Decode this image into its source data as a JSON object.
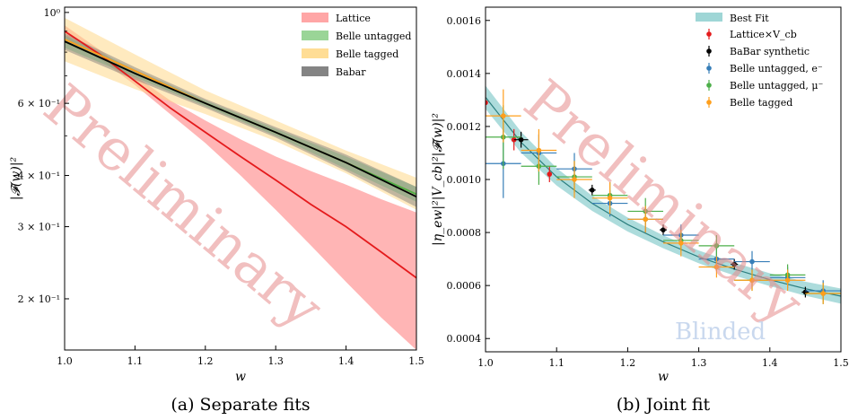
{
  "chart_data": [
    {
      "type": "line",
      "panel": "a",
      "caption": "(a)  Separate fits",
      "xlabel": "w",
      "ylabel": "|𝓕(w)|²",
      "xlim": [
        1.0,
        1.5
      ],
      "ylim": [
        0.15,
        1.03
      ],
      "yscale": "log",
      "xticks": [
        1.0,
        1.1,
        1.2,
        1.3,
        1.4,
        1.5
      ],
      "xtick_labels": [
        "1.0",
        "1.1",
        "1.2",
        "1.3",
        "1.4",
        "1.5"
      ],
      "yticks": [
        1.0,
        0.6,
        0.4,
        0.3,
        0.2
      ],
      "ytick_labels": [
        "10⁰",
        "6 × 10⁻¹",
        "4 × 10⁻¹",
        "3 × 10⁻¹",
        "2 × 10⁻¹"
      ],
      "grid": false,
      "legend_position": "top-right",
      "watermark": "Preliminary",
      "series": [
        {
          "name": "Lattice",
          "color": "#e41a1c",
          "band_color": "#ff9c9c",
          "x": [
            1.0,
            1.05,
            1.1,
            1.15,
            1.2,
            1.25,
            1.3,
            1.35,
            1.4,
            1.45,
            1.5
          ],
          "central": [
            0.9,
            0.79,
            0.68,
            0.585,
            0.51,
            0.445,
            0.39,
            0.34,
            0.3,
            0.26,
            0.225
          ],
          "lower": [
            0.87,
            0.77,
            0.665,
            0.565,
            0.48,
            0.4,
            0.33,
            0.27,
            0.22,
            0.18,
            0.15
          ],
          "upper": [
            0.93,
            0.81,
            0.7,
            0.61,
            0.545,
            0.49,
            0.445,
            0.41,
            0.38,
            0.35,
            0.325
          ]
        },
        {
          "name": "Belle untagged",
          "color": "#4daf4a",
          "band_color": "#8fd08c",
          "x": [
            1.0,
            1.1,
            1.2,
            1.3,
            1.4,
            1.5
          ],
          "central": [
            0.85,
            0.71,
            0.6,
            0.51,
            0.43,
            0.36
          ],
          "lower": [
            0.82,
            0.695,
            0.59,
            0.5,
            0.415,
            0.345
          ],
          "upper": [
            0.88,
            0.725,
            0.61,
            0.52,
            0.445,
            0.375
          ]
        },
        {
          "name": "Belle tagged",
          "color": "#ff9f1c",
          "band_color": "#ffd98a",
          "x": [
            1.0,
            1.1,
            1.2,
            1.3,
            1.4,
            1.5
          ],
          "central": [
            0.86,
            0.72,
            0.6,
            0.51,
            0.43,
            0.36
          ],
          "lower": [
            0.76,
            0.65,
            0.565,
            0.485,
            0.405,
            0.33
          ],
          "upper": [
            0.97,
            0.79,
            0.645,
            0.545,
            0.46,
            0.395
          ]
        },
        {
          "name": "Babar",
          "color": "#000000",
          "band_color": "#777777",
          "x": [
            1.0,
            1.1,
            1.2,
            1.3,
            1.4,
            1.5
          ],
          "central": [
            0.85,
            0.71,
            0.6,
            0.51,
            0.43,
            0.355
          ],
          "lower": [
            0.81,
            0.685,
            0.585,
            0.495,
            0.41,
            0.335
          ],
          "upper": [
            0.89,
            0.735,
            0.615,
            0.525,
            0.45,
            0.375
          ]
        }
      ]
    },
    {
      "type": "scatter",
      "panel": "b",
      "caption": "(b)  Joint fit",
      "xlabel": "w",
      "ylabel": "|η_ew|²|V_cb|²|𝓕(w)|²",
      "xlim": [
        1.0,
        1.5
      ],
      "ylim": [
        0.00035,
        0.00165
      ],
      "xticks": [
        1.0,
        1.1,
        1.2,
        1.3,
        1.4,
        1.5
      ],
      "xtick_labels": [
        "1.0",
        "1.1",
        "1.2",
        "1.3",
        "1.4",
        "1.5"
      ],
      "yticks": [
        0.0004,
        0.0006,
        0.0008,
        0.001,
        0.0012,
        0.0014,
        0.0016
      ],
      "ytick_labels": [
        "0.0004",
        "0.0006",
        "0.0008",
        "0.0010",
        "0.0012",
        "0.0014",
        "0.0016"
      ],
      "grid": false,
      "legend_position": "top-right",
      "watermark": "Preliminary",
      "annotation": "Blinded",
      "fit": {
        "name": "Best Fit",
        "color": "#2c7f7f",
        "band_color": "#9fd6d6",
        "x": [
          1.0,
          1.05,
          1.1,
          1.15,
          1.2,
          1.25,
          1.3,
          1.35,
          1.4,
          1.45,
          1.5
        ],
        "central": [
          0.00131,
          0.00114,
          0.00101,
          0.00091,
          0.00083,
          0.000765,
          0.000708,
          0.000662,
          0.000622,
          0.000588,
          0.00056
        ],
        "half_width": [
          2e-05,
          1.8e-05,
          1.5e-05,
          1.3e-05,
          1.2e-05,
          1.1e-05,
          1.1e-05,
          1.1e-05,
          1.1e-05,
          1.2e-05,
          1.3e-05
        ]
      },
      "series": [
        {
          "name": "Lattice×V_cb",
          "color": "#e41a1c",
          "points": [
            {
              "x": 1.0,
              "y": 0.00129,
              "xerr": 0.0,
              "yerr": 5e-05
            },
            {
              "x": 1.04,
              "y": 0.00115,
              "xerr": 0.0,
              "yerr": 4e-05
            },
            {
              "x": 1.09,
              "y": 0.00102,
              "xerr": 0.0,
              "yerr": 3e-05
            }
          ]
        },
        {
          "name": "BaBar synthetic",
          "color": "#000000",
          "points": [
            {
              "x": 1.05,
              "y": 0.00115,
              "xerr": 0.01,
              "yerr": 3e-05
            },
            {
              "x": 1.15,
              "y": 0.00096,
              "xerr": 0.005,
              "yerr": 2e-05
            },
            {
              "x": 1.25,
              "y": 0.00081,
              "xerr": 0.005,
              "yerr": 2e-05
            },
            {
              "x": 1.35,
              "y": 0.00068,
              "xerr": 0.005,
              "yerr": 2e-05
            },
            {
              "x": 1.45,
              "y": 0.000575,
              "xerr": 0.005,
              "yerr": 2e-05
            }
          ]
        },
        {
          "name": "Belle untagged, e⁻",
          "color": "#377eb8",
          "points": [
            {
              "x": 1.025,
              "y": 0.00106,
              "xerr": 0.025,
              "yerr": 0.00013
            },
            {
              "x": 1.075,
              "y": 0.0011,
              "xerr": 0.025,
              "yerr": 7e-05
            },
            {
              "x": 1.125,
              "y": 0.00104,
              "xerr": 0.025,
              "yerr": 6e-05
            },
            {
              "x": 1.175,
              "y": 0.00091,
              "xerr": 0.025,
              "yerr": 5e-05
            },
            {
              "x": 1.225,
              "y": 0.00085,
              "xerr": 0.025,
              "yerr": 5e-05
            },
            {
              "x": 1.275,
              "y": 0.00079,
              "xerr": 0.025,
              "yerr": 4e-05
            },
            {
              "x": 1.325,
              "y": 0.0007,
              "xerr": 0.025,
              "yerr": 4e-05
            },
            {
              "x": 1.375,
              "y": 0.00069,
              "xerr": 0.025,
              "yerr": 4e-05
            },
            {
              "x": 1.425,
              "y": 0.00063,
              "xerr": 0.025,
              "yerr": 4e-05
            },
            {
              "x": 1.475,
              "y": 0.00058,
              "xerr": 0.025,
              "yerr": 4e-05
            }
          ]
        },
        {
          "name": "Belle untagged, μ⁻",
          "color": "#4daf4a",
          "points": [
            {
              "x": 1.025,
              "y": 0.00116,
              "xerr": 0.025,
              "yerr": 0.00012
            },
            {
              "x": 1.075,
              "y": 0.00105,
              "xerr": 0.025,
              "yerr": 7e-05
            },
            {
              "x": 1.125,
              "y": 0.00101,
              "xerr": 0.025,
              "yerr": 6e-05
            },
            {
              "x": 1.175,
              "y": 0.00094,
              "xerr": 0.025,
              "yerr": 5e-05
            },
            {
              "x": 1.225,
              "y": 0.00088,
              "xerr": 0.025,
              "yerr": 5e-05
            },
            {
              "x": 1.275,
              "y": 0.00077,
              "xerr": 0.025,
              "yerr": 4e-05
            },
            {
              "x": 1.325,
              "y": 0.00075,
              "xerr": 0.025,
              "yerr": 4e-05
            },
            {
              "x": 1.375,
              "y": 0.00062,
              "xerr": 0.025,
              "yerr": 4e-05
            },
            {
              "x": 1.425,
              "y": 0.00064,
              "xerr": 0.025,
              "yerr": 4e-05
            },
            {
              "x": 1.475,
              "y": 0.00057,
              "xerr": 0.025,
              "yerr": 4e-05
            }
          ]
        },
        {
          "name": "Belle tagged",
          "color": "#ff9f1c",
          "points": [
            {
              "x": 1.025,
              "y": 0.00124,
              "xerr": 0.025,
              "yerr": 0.0001
            },
            {
              "x": 1.075,
              "y": 0.00111,
              "xerr": 0.025,
              "yerr": 8e-05
            },
            {
              "x": 1.125,
              "y": 0.001,
              "xerr": 0.025,
              "yerr": 7e-05
            },
            {
              "x": 1.175,
              "y": 0.00093,
              "xerr": 0.025,
              "yerr": 6e-05
            },
            {
              "x": 1.225,
              "y": 0.00085,
              "xerr": 0.025,
              "yerr": 5e-05
            },
            {
              "x": 1.275,
              "y": 0.00076,
              "xerr": 0.025,
              "yerr": 5e-05
            },
            {
              "x": 1.325,
              "y": 0.00067,
              "xerr": 0.025,
              "yerr": 4e-05
            },
            {
              "x": 1.375,
              "y": 0.00062,
              "xerr": 0.025,
              "yerr": 4e-05
            },
            {
              "x": 1.425,
              "y": 0.00062,
              "xerr": 0.025,
              "yerr": 4e-05
            },
            {
              "x": 1.475,
              "y": 0.00057,
              "xerr": 0.025,
              "yerr": 4e-05
            }
          ]
        }
      ]
    }
  ]
}
